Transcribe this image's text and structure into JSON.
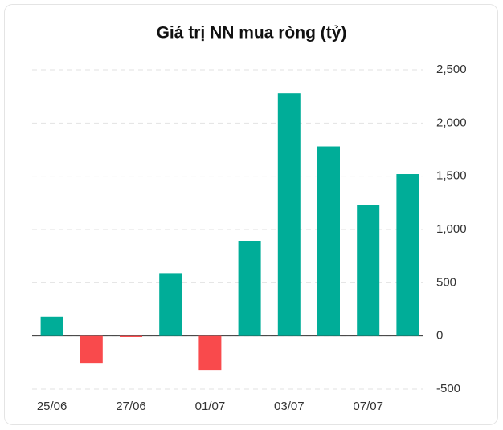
{
  "chart_data": {
    "type": "bar",
    "title": "Giá trị NN mua ròng (tỷ)",
    "categories": [
      "25/06",
      null,
      "27/06",
      null,
      "01/07",
      null,
      "03/07",
      null,
      "07/07",
      null
    ],
    "values": [
      180,
      -260,
      -10,
      590,
      -320,
      890,
      2280,
      1780,
      1230,
      1520
    ],
    "positive_color": "#00ad98",
    "negative_color": "#f94a4c",
    "ylim": [
      -500,
      2500
    ],
    "yticks": [
      -500,
      0,
      500,
      {
        "value": 1000,
        "label": "1,000"
      },
      {
        "value": 1500,
        "label": "1,500"
      },
      {
        "value": 2000,
        "label": "2,000"
      },
      {
        "value": 2500,
        "label": "2,500"
      }
    ],
    "grid": true
  }
}
